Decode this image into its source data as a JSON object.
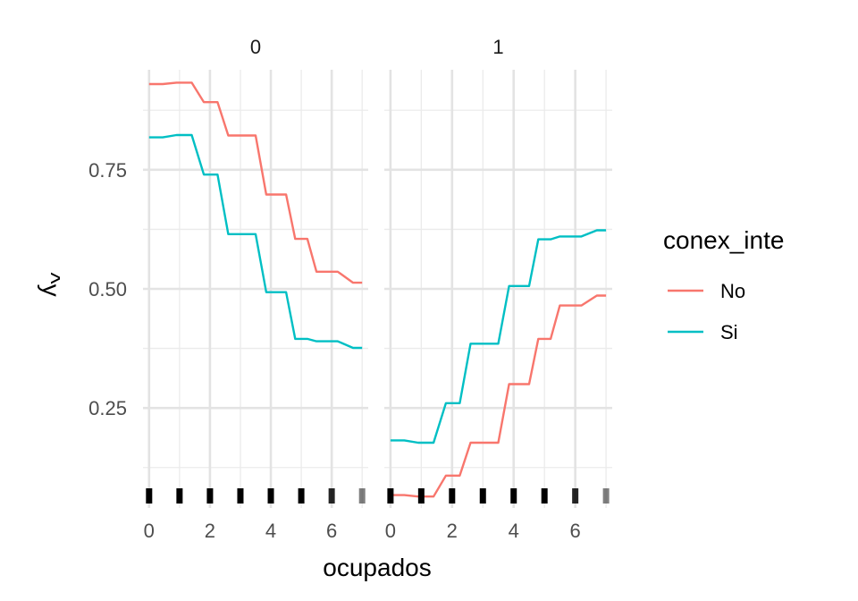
{
  "chart_data": {
    "type": "line",
    "facet_variable_labels": [
      "0",
      "1"
    ],
    "xlabel": "ocupados",
    "ylabel": "^y",
    "xlim": [
      -0.2,
      7.2
    ],
    "ylim": [
      0.04,
      0.96
    ],
    "x_ticks": [
      0,
      2,
      4,
      6
    ],
    "x_tick_labels": [
      "0",
      "2",
      "4",
      "6"
    ],
    "y_ticks": [
      0.25,
      0.5,
      0.75
    ],
    "y_tick_labels": [
      "0.25",
      "0.50",
      "0.75"
    ],
    "x_minor_ticks": [
      1,
      3,
      5,
      7
    ],
    "y_minor_ticks": [
      0.125,
      0.375,
      0.625,
      0.875
    ],
    "grid": true,
    "legend": {
      "title": "conex_inte",
      "position": "right",
      "entries": [
        "No",
        "Si"
      ]
    },
    "colors": {
      "No": "#F8766D",
      "Si": "#00BFC4",
      "rug": "#000000"
    },
    "rug_x": [
      0,
      1,
      2,
      3,
      4,
      5,
      6,
      7
    ],
    "rug_opacity": [
      1,
      1,
      1,
      1,
      1,
      1,
      0.85,
      0.5
    ],
    "facets": [
      {
        "label": "0",
        "series": [
          {
            "name": "No",
            "x": [
              0,
              0.45,
              0.9,
              1.4,
              1.8,
              2.25,
              2.6,
              3.1,
              3.5,
              3.85,
              4.5,
              4.8,
              5.2,
              5.5,
              6.2,
              6.7,
              7
            ],
            "y": [
              0.93,
              0.93,
              0.933,
              0.933,
              0.892,
              0.892,
              0.822,
              0.822,
              0.822,
              0.698,
              0.698,
              0.605,
              0.605,
              0.536,
              0.536,
              0.513,
              0.513
            ]
          },
          {
            "name": "Si",
            "x": [
              0,
              0.45,
              0.9,
              1.4,
              1.8,
              2.25,
              2.6,
              3.1,
              3.5,
              3.85,
              4.5,
              4.8,
              5.2,
              5.5,
              6.2,
              6.7,
              7
            ],
            "y": [
              0.818,
              0.818,
              0.823,
              0.823,
              0.74,
              0.74,
              0.615,
              0.615,
              0.615,
              0.493,
              0.493,
              0.395,
              0.395,
              0.39,
              0.39,
              0.376,
              0.376
            ]
          }
        ]
      },
      {
        "label": "1",
        "series": [
          {
            "name": "No",
            "x": [
              0,
              0.45,
              0.9,
              1.4,
              1.8,
              2.25,
              2.6,
              3.1,
              3.5,
              3.85,
              4.5,
              4.8,
              5.2,
              5.5,
              6.2,
              6.7,
              7
            ],
            "y": [
              0.067,
              0.067,
              0.064,
              0.064,
              0.108,
              0.108,
              0.177,
              0.177,
              0.177,
              0.3,
              0.3,
              0.395,
              0.395,
              0.465,
              0.465,
              0.486,
              0.486
            ]
          },
          {
            "name": "Si",
            "x": [
              0,
              0.45,
              0.9,
              1.4,
              1.8,
              2.25,
              2.6,
              3.1,
              3.5,
              3.85,
              4.5,
              4.8,
              5.2,
              5.5,
              6.2,
              6.7,
              7
            ],
            "y": [
              0.182,
              0.182,
              0.177,
              0.177,
              0.26,
              0.26,
              0.385,
              0.385,
              0.385,
              0.506,
              0.506,
              0.604,
              0.604,
              0.61,
              0.61,
              0.623,
              0.623
            ]
          }
        ]
      }
    ]
  }
}
